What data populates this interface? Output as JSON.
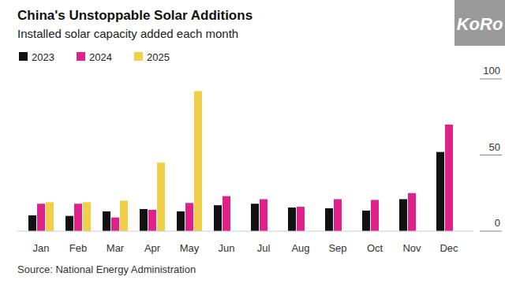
{
  "chart_data": {
    "type": "bar",
    "title": "China's Unstoppable Solar Additions",
    "subtitle": "Installed solar capacity added each month",
    "source": "Source: National Energy Administration",
    "annotations": [
      "KoRo"
    ],
    "categories": [
      "Jan",
      "Feb",
      "Mar",
      "Apr",
      "May",
      "Jun",
      "Jul",
      "Aug",
      "Sep",
      "Oct",
      "Nov",
      "Dec"
    ],
    "series": [
      {
        "name": "2023",
        "color": "#111111",
        "values": [
          10.4,
          10,
          13,
          14.5,
          13,
          17,
          18,
          15.5,
          15,
          13.5,
          21,
          52
        ]
      },
      {
        "name": "2024",
        "color": "#e0218a",
        "values": [
          18,
          18,
          9,
          14,
          18.5,
          23,
          21,
          16,
          21,
          20.5,
          25,
          70
        ]
      },
      {
        "name": "2025",
        "color": "#f2cf48",
        "values": [
          19,
          19,
          20,
          45,
          92,
          null,
          null,
          null,
          null,
          null,
          null,
          null
        ]
      }
    ],
    "ylim": [
      0,
      100
    ],
    "yticks": [
      0,
      50,
      100
    ],
    "grid": false,
    "legend": "top-left"
  }
}
